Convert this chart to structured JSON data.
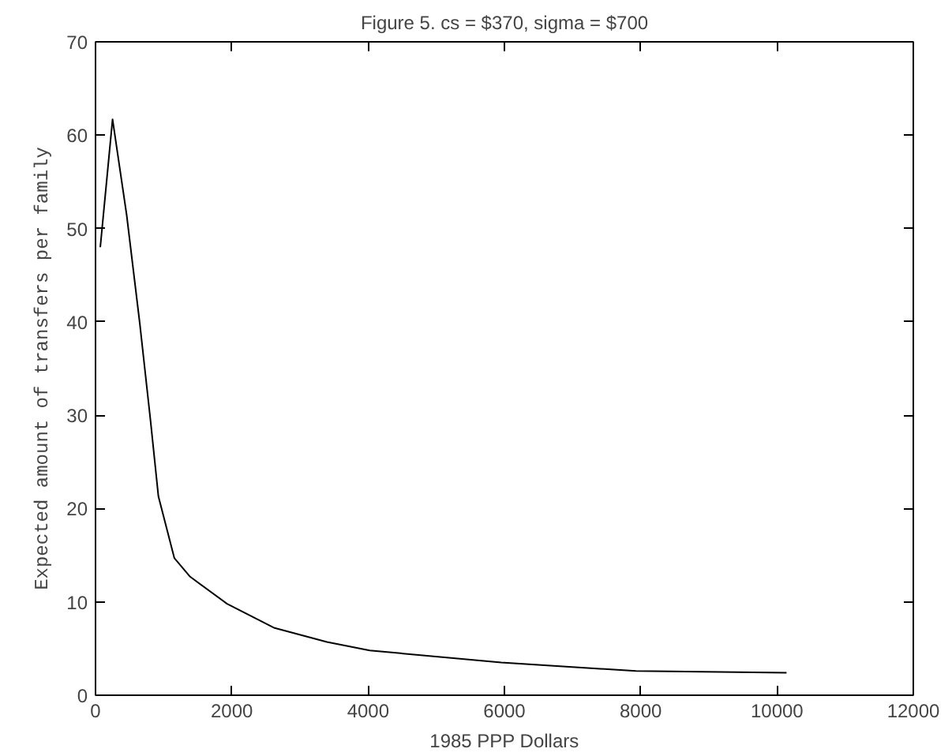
{
  "chart_data": {
    "type": "line",
    "title": "Figure 5. cs = $370, sigma = $700",
    "xlabel": "1985 PPP Dollars",
    "ylabel": "Expected amount of transfers per family",
    "x": [
      70,
      250,
      458,
      650,
      806,
      923,
      1156,
      1388,
      1930,
      2628,
      3093,
      3395,
      4023,
      5953,
      7930,
      10140
    ],
    "series": [
      {
        "color": "#000000",
        "values": [
          48,
          61.7,
          51.4,
          39.8,
          29.5,
          21.3,
          14.7,
          12.7,
          9.8,
          7.2,
          6.3,
          5.7,
          4.8,
          3.5,
          2.6,
          2.4
        ]
      }
    ],
    "xlim": [
      0,
      12000
    ],
    "ylim": [
      0,
      70
    ],
    "xticks": [
      0,
      2000,
      4000,
      6000,
      8000,
      10000,
      12000
    ],
    "yticks": [
      0,
      10,
      20,
      30,
      40,
      50,
      60,
      70
    ],
    "grid": false
  }
}
